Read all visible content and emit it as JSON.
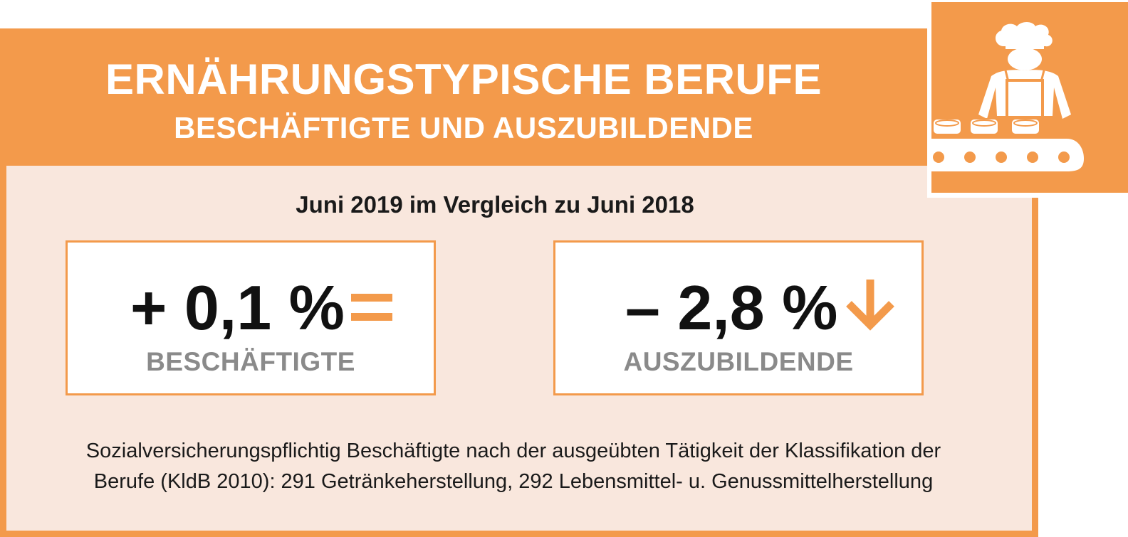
{
  "header": {
    "title": "ERNÄHRUNGSTYPISCHE BERUFE",
    "subtitle": "BESCHÄFTIGTE UND AUSZUBILDENDE"
  },
  "period": "Juni 2019 im Vergleich zu Juni 2018",
  "stats": [
    {
      "value": "+ 0,1 %",
      "label": "BESCHÄFTIGTE",
      "trend_icon": "equals-icon"
    },
    {
      "value": "– 2,8 %",
      "label": "AUSZUBILDENDE",
      "trend_icon": "arrow-down-icon"
    }
  ],
  "footnote": {
    "line1": "Sozialversicherungspflichtig Beschäftigte nach der ausgeübten Tätigkeit der Klassifikation der",
    "line2": "Berufe (KldB 2010): 291 Getränkeherstellung, 292 Lebensmittel- u. Genussmittelherstellung"
  },
  "colors": {
    "accent": "#f39a4b",
    "background": "#f9e7dd",
    "label_gray": "#8a8a8a",
    "text": "#111111"
  },
  "icons": {
    "header_icon": "food-worker-conveyor-icon"
  }
}
